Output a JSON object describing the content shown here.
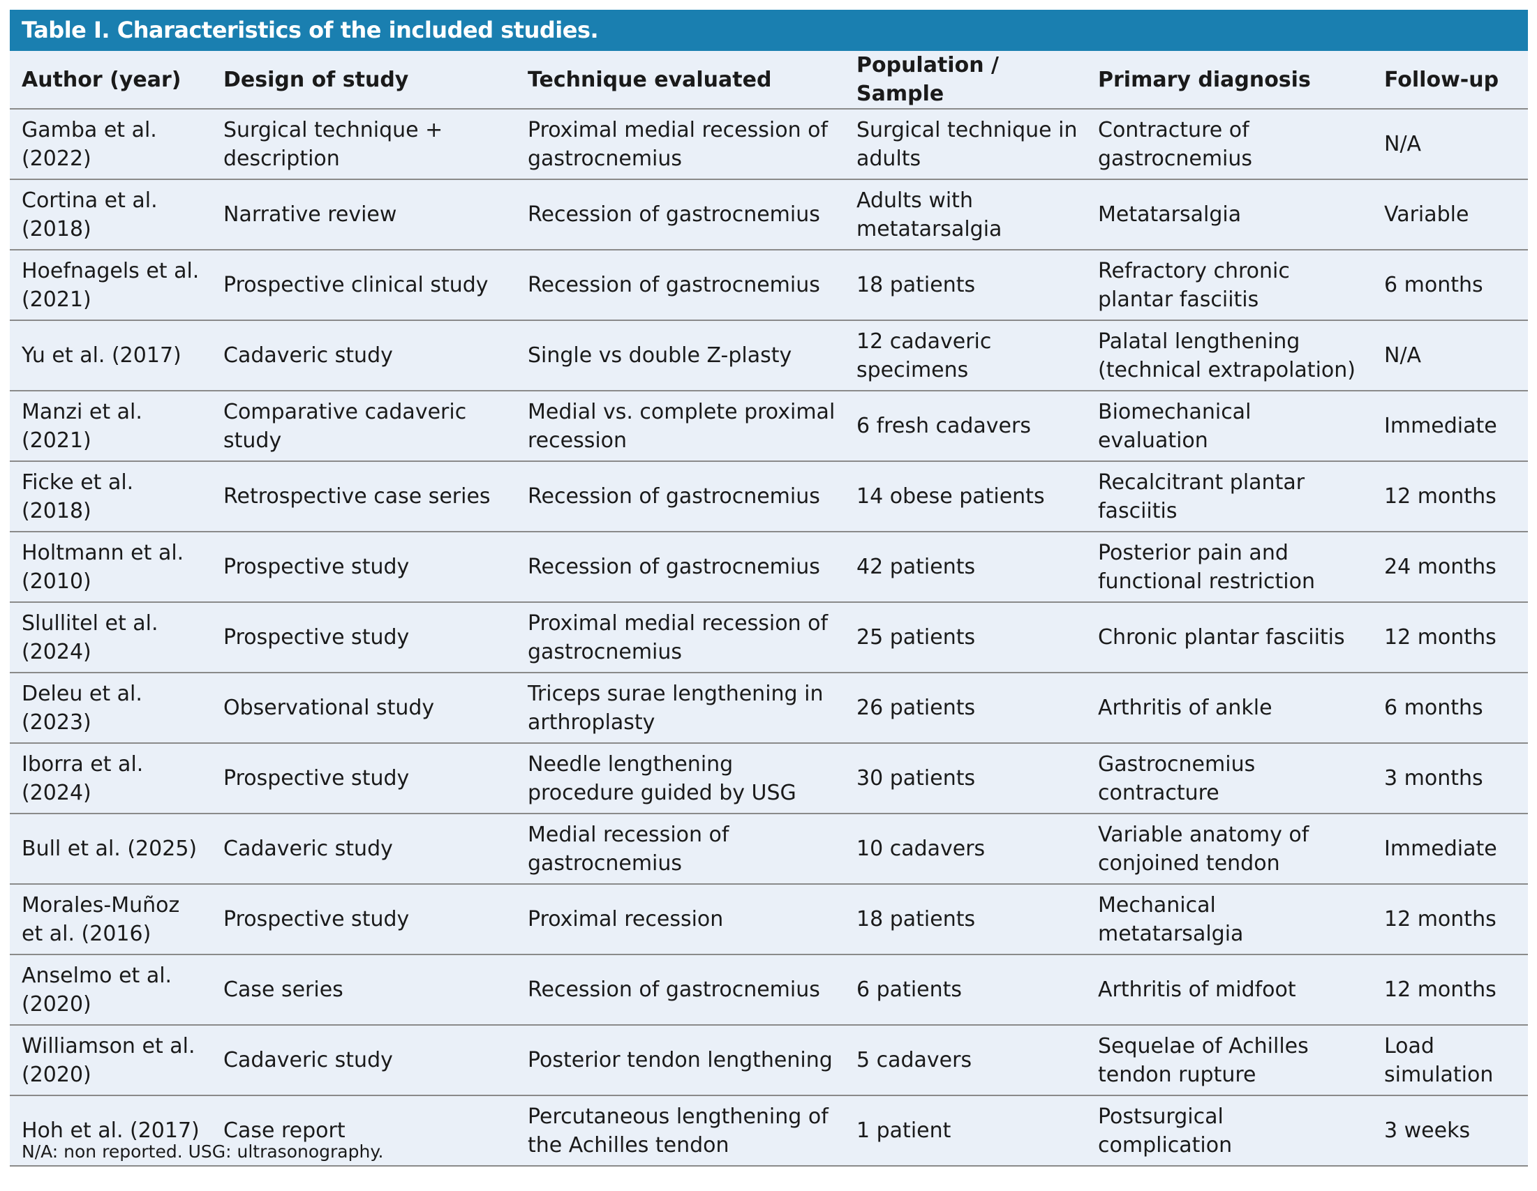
{
  "header": {
    "title": "Table I. Characteristics of the included studies."
  },
  "table": {
    "columns": [
      "Author (year)",
      "Design of study",
      "Technique evaluated",
      "Population / Sample",
      "Primary diagnosis",
      "Follow-up"
    ],
    "rows": [
      [
        "Gamba et al. (2022)",
        "Surgical technique + description",
        "Proximal medial recession of gastrocnemius",
        "Surgical technique in adults",
        "Contracture of gastrocnemius",
        "N/A"
      ],
      [
        "Cortina et al. (2018)",
        "Narrative review",
        "Recession of gastrocnemius",
        "Adults with metatarsalgia",
        "Metatarsalgia",
        "Variable"
      ],
      [
        "Hoefnagels et al. (2021)",
        "Prospective clinical study",
        "Recession of gastrocnemius",
        "18 patients",
        "Refractory chronic plantar fasciitis",
        "6 months"
      ],
      [
        "Yu et al. (2017)",
        "Cadaveric study",
        "Single vs double Z-plasty",
        "12 cadaveric specimens",
        "Palatal lengthening (technical extrapolation)",
        "N/A"
      ],
      [
        "Manzi et al. (2021)",
        "Comparative cadaveric study",
        "Medial vs. complete proximal recession",
        "6 fresh cadavers",
        "Biomechanical evaluation",
        "Immediate"
      ],
      [
        "Ficke et al. (2018)",
        "Retrospective case series",
        "Recession of gastrocnemius",
        "14 obese patients",
        "Recalcitrant plantar fasciitis",
        "12 months"
      ],
      [
        "Holtmann et al. (2010)",
        "Prospective study",
        "Recession of gastrocnemius",
        "42 patients",
        "Posterior pain and functional restriction",
        "24 months"
      ],
      [
        "Slullitel et al. (2024)",
        "Prospective study",
        "Proximal medial recession of gastrocnemius",
        "25 patients",
        "Chronic plantar fasciitis",
        "12 months"
      ],
      [
        "Deleu et al. (2023)",
        "Observational study",
        "Triceps surae lengthening in arthroplasty",
        "26 patients",
        "Arthritis of ankle",
        "6 months"
      ],
      [
        "Iborra et al. (2024)",
        "Prospective study",
        "Needle lengthening procedure guided by USG",
        "30 patients",
        "Gastrocnemius contracture",
        "3 months"
      ],
      [
        "Bull et al. (2025)",
        "Cadaveric study",
        "Medial recession of gastrocnemius",
        "10 cadavers",
        "Variable anatomy of conjoined tendon",
        "Immediate"
      ],
      [
        "Morales-Muñoz et al. (2016)",
        "Prospective study",
        "Proximal recession",
        "18 patients",
        "Mechanical metatarsalgia",
        "12 months"
      ],
      [
        "Anselmo et al. (2020)",
        "Case series",
        "Recession of gastrocnemius",
        "6 patients",
        "Arthritis of midfoot",
        "12 months"
      ],
      [
        "Williamson et al. (2020)",
        "Cadaveric study",
        "Posterior tendon lengthening",
        "5 cadavers",
        "Sequelae of Achilles tendon rupture",
        "Load simulation"
      ],
      [
        "Hoh et al. (2017)",
        "Case report",
        "Percutaneous lengthening of the Achilles tendon",
        "1 patient",
        "Postsurgical complication",
        "3 weeks"
      ]
    ]
  },
  "footnote": "N/A: non reported. USG: ultrasonography."
}
